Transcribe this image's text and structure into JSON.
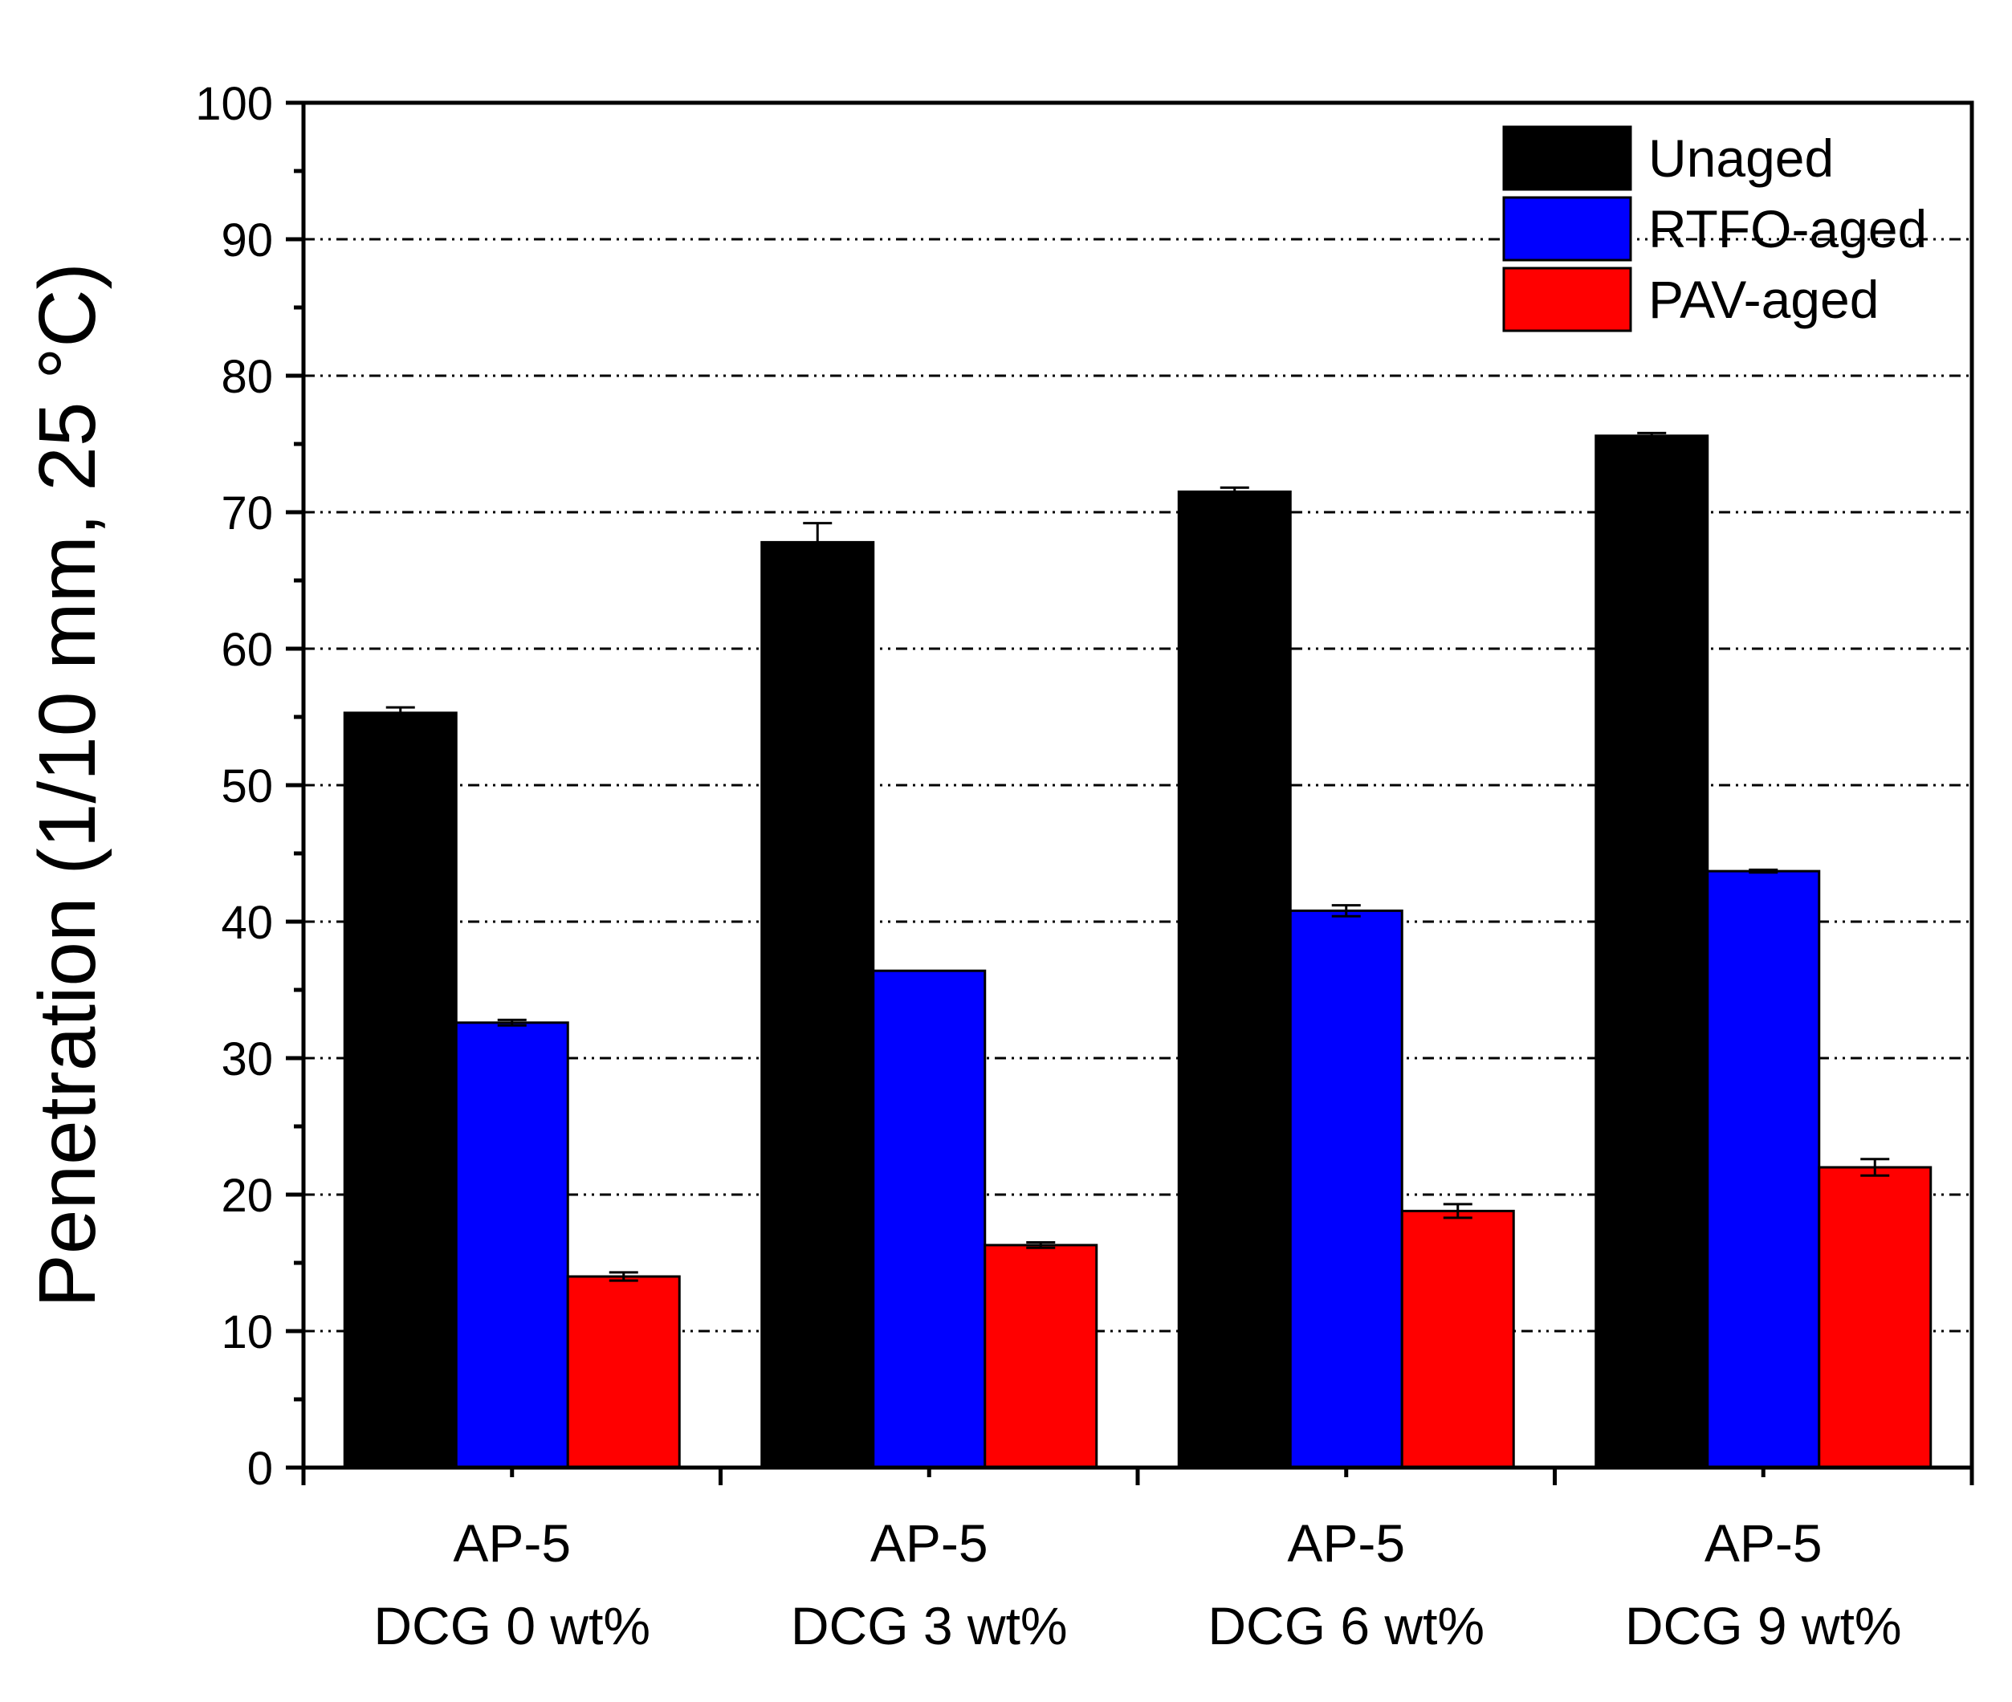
{
  "chart_data": {
    "type": "bar",
    "title": "",
    "xlabel": "",
    "ylabel": "Penetration (1/10 mm, 25 °C)",
    "ylim": [
      0,
      100
    ],
    "yticks": [
      "0",
      "10",
      "20",
      "30",
      "40",
      "50",
      "60",
      "70",
      "80",
      "90",
      "100"
    ],
    "grid": true,
    "legend_position": "top-right",
    "categories": [
      {
        "line1": "AP-5",
        "line2": "DCG 0 wt%"
      },
      {
        "line1": "AP-5",
        "line2": "DCG 3 wt%"
      },
      {
        "line1": "AP-5",
        "line2": "DCG 6 wt%"
      },
      {
        "line1": "AP-5",
        "line2": "DCG 9 wt%"
      }
    ],
    "series": [
      {
        "name": "Unaged",
        "color": "#000000",
        "values": [
          55.3,
          67.8,
          71.5,
          75.6
        ],
        "errors": [
          0.4,
          1.4,
          0.3,
          0.2
        ]
      },
      {
        "name": "RTFO-aged",
        "color": "#0000ff",
        "values": [
          32.6,
          36.4,
          40.8,
          43.7
        ],
        "errors": [
          0.2,
          0.0,
          0.4,
          0.1
        ]
      },
      {
        "name": "PAV-aged",
        "color": "#ff0000",
        "values": [
          14.0,
          16.3,
          18.8,
          22.0
        ],
        "errors": [
          0.3,
          0.2,
          0.5,
          0.6
        ]
      }
    ]
  }
}
